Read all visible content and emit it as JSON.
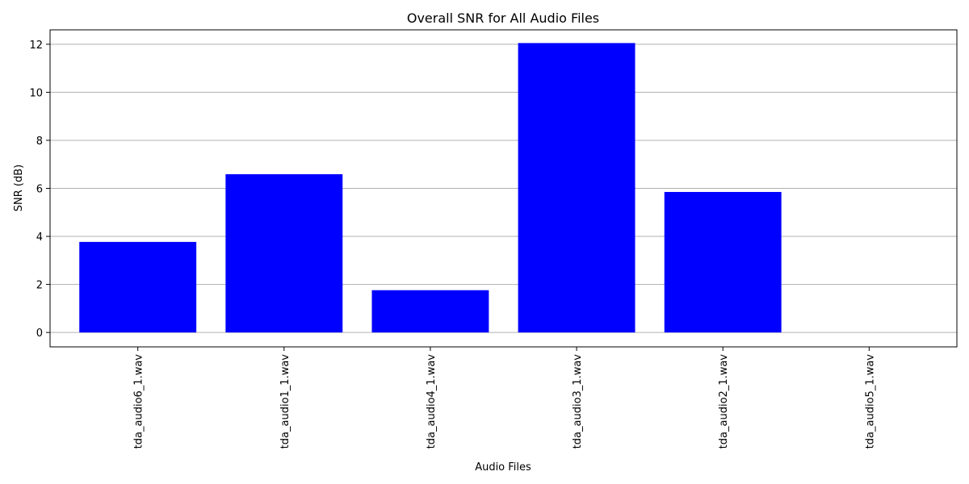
{
  "chart_data": {
    "type": "bar",
    "title": "Overall SNR for All Audio Files",
    "xlabel": "Audio Files",
    "ylabel": "SNR (dB)",
    "categories": [
      "tda_audio6_1.wav",
      "tda_audio1_1.wav",
      "tda_audio4_1.wav",
      "tda_audio3_1.wav",
      "tda_audio2_1.wav",
      "tda_audio5_1.wav"
    ],
    "values": [
      3.77,
      6.59,
      1.76,
      12.05,
      5.85,
      0
    ],
    "ylim": [
      -0.6,
      12.6
    ],
    "yticks": [
      0,
      2,
      4,
      6,
      8,
      10,
      12
    ],
    "grid": "y",
    "bar_color": "#0000ff",
    "grid_color": "#b0b0b0"
  }
}
